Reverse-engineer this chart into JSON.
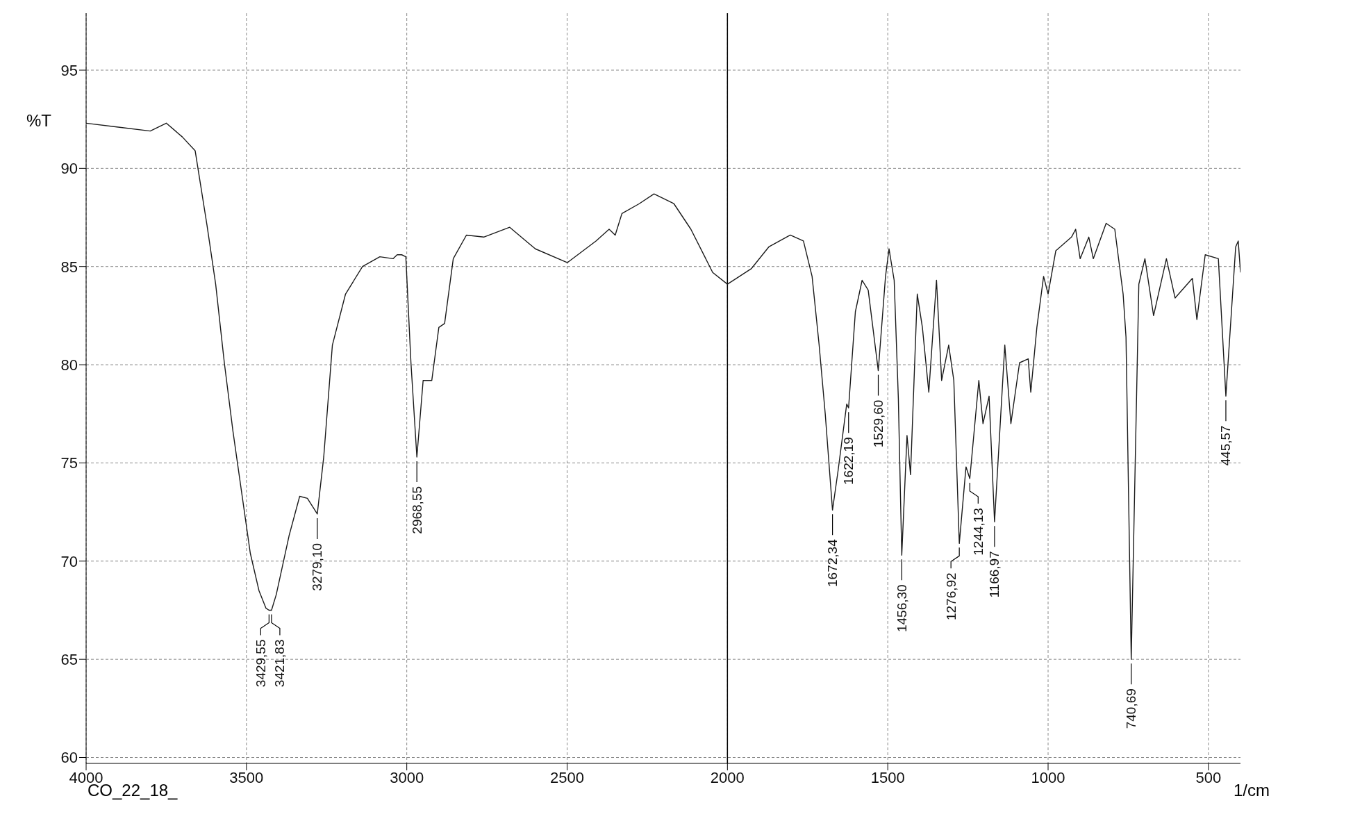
{
  "chart_data": {
    "type": "line",
    "xlabel": "1/cm",
    "ylabel": "%T",
    "x": [
      4000,
      3900,
      3800,
      3750,
      3700,
      3660,
      3623,
      3596,
      3569,
      3542,
      3515,
      3488,
      3461,
      3439,
      3429.55,
      3421.83,
      3407,
      3367,
      3334,
      3310,
      3279.1,
      3259,
      3232,
      3191,
      3138,
      3084,
      3043,
      3030,
      3016,
      3003,
      2987,
      2968.55,
      2949,
      2922,
      2900,
      2882,
      2855,
      2814,
      2760,
      2679,
      2599,
      2499,
      2410,
      2369,
      2350,
      2329,
      2275,
      2229,
      2167,
      2114,
      2046,
      2000,
      1925,
      1871,
      1804,
      1763,
      1736,
      1714,
      1695,
      1672.34,
      1655,
      1628,
      1622.19,
      1601,
      1580,
      1561,
      1529.6,
      1507,
      1496,
      1480,
      1467,
      1456.3,
      1440,
      1429,
      1408,
      1392,
      1372,
      1348,
      1332,
      1310,
      1294,
      1276.92,
      1256,
      1244.13,
      1216,
      1203,
      1184,
      1166.97,
      1135,
      1116,
      1089,
      1062,
      1054,
      1035,
      1014,
      1000,
      976,
      927,
      914,
      900,
      873,
      859,
      819,
      792,
      766,
      757,
      740.69,
      717,
      698,
      671,
      631,
      604,
      550,
      536,
      510,
      469,
      445.57,
      415,
      407,
      400
    ],
    "series": [
      {
        "color": "#1a1a1a",
        "values": [
          92.3,
          92.1,
          91.9,
          92.3,
          91.6,
          90.9,
          87.1,
          84.1,
          80.1,
          76.6,
          73.5,
          70.4,
          68.5,
          67.6,
          67.5,
          67.5,
          68.3,
          71.3,
          73.3,
          73.2,
          72.4,
          75.3,
          81.0,
          83.6,
          85.0,
          85.5,
          85.4,
          85.6,
          85.6,
          85.5,
          80.1,
          75.3,
          79.2,
          79.2,
          81.9,
          82.1,
          85.4,
          86.6,
          86.5,
          87.0,
          85.9,
          85.2,
          86.3,
          86.9,
          86.6,
          87.7,
          88.2,
          88.7,
          88.2,
          86.9,
          84.7,
          84.1,
          84.9,
          86.0,
          86.6,
          86.3,
          84.5,
          81.0,
          77.5,
          72.6,
          74.6,
          78.0,
          77.8,
          82.7,
          84.3,
          83.8,
          79.7,
          84.5,
          85.9,
          84.3,
          78.3,
          70.3,
          76.4,
          74.4,
          83.6,
          81.9,
          78.6,
          84.3,
          79.2,
          81.0,
          79.2,
          70.9,
          74.8,
          74.2,
          79.2,
          77.0,
          78.4,
          72.0,
          81.0,
          77.0,
          80.1,
          80.3,
          78.6,
          81.9,
          84.5,
          83.6,
          85.8,
          86.5,
          86.9,
          85.4,
          86.5,
          85.4,
          87.2,
          86.9,
          83.6,
          81.4,
          65.0,
          84.1,
          85.4,
          82.5,
          85.4,
          83.4,
          84.4,
          82.3,
          85.6,
          85.4,
          78.4,
          86.0,
          86.3,
          84.7
        ]
      }
    ],
    "xlim": [
      4000,
      400
    ],
    "xticks": [
      4000,
      3500,
      3000,
      2500,
      2000,
      1500,
      1000,
      500
    ],
    "ylim": [
      59.7,
      97.9
    ],
    "yticks": [
      60,
      65,
      70,
      75,
      80,
      85,
      90,
      95
    ],
    "grid": true,
    "line_style": "solid",
    "ref_lines": [
      {
        "axis": "x",
        "value": 2000,
        "color": "#000000",
        "line_style": "solid"
      }
    ],
    "annotations": [
      {
        "text": "3429,55",
        "x": 3429.55,
        "y": 67.5
      },
      {
        "text": "3421,83",
        "x": 3421.83,
        "y": 67.5
      },
      {
        "text": "3279,10",
        "x": 3279.1,
        "y": 72.4
      },
      {
        "text": "2968,55",
        "x": 2968.55,
        "y": 75.3
      },
      {
        "text": "1672,34",
        "x": 1672.34,
        "y": 72.6
      },
      {
        "text": "1622,19",
        "x": 1622.19,
        "y": 77.8
      },
      {
        "text": "1529,60",
        "x": 1529.6,
        "y": 79.7
      },
      {
        "text": "1456,30",
        "x": 1456.3,
        "y": 70.3
      },
      {
        "text": "1276,92",
        "x": 1276.92,
        "y": 70.9
      },
      {
        "text": "1244,13",
        "x": 1244.13,
        "y": 74.2
      },
      {
        "text": "1166,97",
        "x": 1166.97,
        "y": 72.0
      },
      {
        "text": "740,69",
        "x": 740.69,
        "y": 65.0
      },
      {
        "text": "445,57",
        "x": 445.57,
        "y": 78.4
      },
      "CO_22_18_"
    ]
  }
}
